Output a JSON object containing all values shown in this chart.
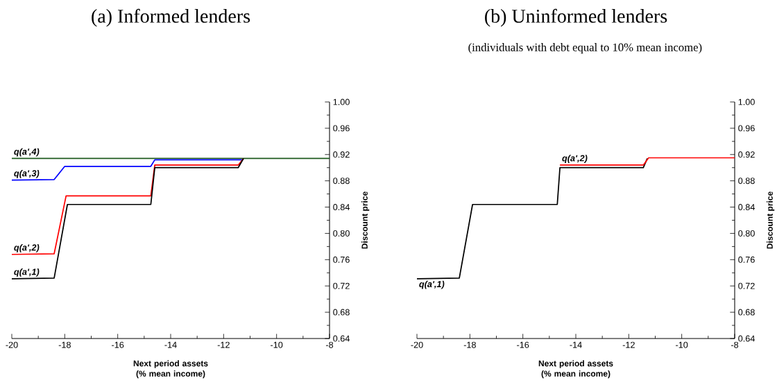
{
  "chart_data": [
    {
      "type": "line",
      "title": "(a) Informed lenders",
      "xlabel": "Next period assets (% mean income)",
      "ylabel": "Discount price",
      "xlim": [
        -20,
        -8
      ],
      "xticks": [
        -20,
        -18,
        -16,
        -14,
        -12,
        -10,
        -8
      ],
      "ylim": [
        0.64,
        1.0
      ],
      "yticks": [
        {
          "value": 0.64,
          "label": "0.64"
        },
        {
          "value": 0.68,
          "label": "0.68"
        },
        {
          "value": 0.72,
          "label": "0.72"
        },
        {
          "value": 0.76,
          "label": "0.76"
        },
        {
          "value": 0.8,
          "label": "0.80"
        },
        {
          "value": 0.84,
          "label": "0.84"
        },
        {
          "value": 0.88,
          "label": "0.88"
        },
        {
          "value": 0.92,
          "label": "0.92"
        },
        {
          "value": 0.96,
          "label": "0.96"
        },
        {
          "value": 1.0,
          "label": "1.00"
        }
      ],
      "series": [
        {
          "name": "q(a',4)",
          "color": "#1e5a1e",
          "x": [
            -20,
            -8
          ],
          "values": [
            0.914,
            0.914
          ]
        },
        {
          "name": "q(a',3)",
          "color": "#0000ff",
          "x": [
            -20,
            -18.4,
            -18.0,
            -14.75,
            -14.6,
            -11.3
          ],
          "values": [
            0.881,
            0.882,
            0.902,
            0.902,
            0.912,
            0.912
          ]
        },
        {
          "name": "q(a',2)",
          "color": "#ff0000",
          "x": [
            -20,
            -18.4,
            -17.95,
            -14.75,
            -14.6,
            -11.45,
            -11.25
          ],
          "values": [
            0.768,
            0.769,
            0.857,
            0.857,
            0.904,
            0.904,
            0.914
          ]
        },
        {
          "name": "q(a',1)",
          "color": "#000000",
          "x": [
            -20,
            -18.4,
            -17.9,
            -14.75,
            -14.6,
            -11.45,
            -11.25
          ],
          "values": [
            0.731,
            0.732,
            0.844,
            0.844,
            0.9,
            0.9,
            0.914
          ]
        }
      ]
    },
    {
      "type": "line",
      "title": "(b) Uninformed lenders",
      "subtitle": "(individuals with debt equal to 10% mean income)",
      "xlabel": "Next period assets (% mean income)",
      "ylabel": "Discount price",
      "xlim": [
        -20,
        -8
      ],
      "xticks": [
        -20,
        -18,
        -16,
        -14,
        -12,
        -10,
        -8
      ],
      "ylim": [
        0.64,
        1.0
      ],
      "yticks": [
        {
          "value": 0.64,
          "label": "0.64"
        },
        {
          "value": 0.68,
          "label": "0.68"
        },
        {
          "value": 0.72,
          "label": "0.72"
        },
        {
          "value": 0.76,
          "label": "0.76"
        },
        {
          "value": 0.8,
          "label": "0.80"
        },
        {
          "value": 0.84,
          "label": "0.84"
        },
        {
          "value": 0.88,
          "label": "0.88"
        },
        {
          "value": 0.92,
          "label": "0.92"
        },
        {
          "value": 0.96,
          "label": "0.96"
        },
        {
          "value": 1.0,
          "label": "1.00"
        }
      ],
      "series": [
        {
          "name": "q(a',1)",
          "color": "#000000",
          "x": [
            -20,
            -18.4,
            -17.9,
            -14.7,
            -14.6,
            -11.45,
            -11.3
          ],
          "values": [
            0.731,
            0.732,
            0.844,
            0.844,
            0.9,
            0.9,
            0.914
          ]
        },
        {
          "name": "q(a',2)",
          "color": "#ff0000",
          "x": [
            -14.6,
            -11.45,
            -11.25,
            -8
          ],
          "values": [
            0.904,
            0.904,
            0.915,
            0.915
          ]
        }
      ]
    }
  ]
}
